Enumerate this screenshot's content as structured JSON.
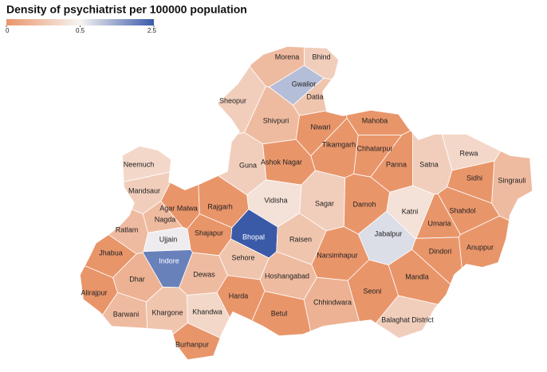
{
  "title": "Density of psychiatrist per 100000 population",
  "colorscale": [
    {
      "value": 0,
      "color": "#e9956a"
    },
    {
      "value": 0.5,
      "color": "#f7f4f2"
    },
    {
      "value": 2.5,
      "color": "#3a5aa8"
    }
  ],
  "legend_ticks": [
    0,
    0.5,
    2.5
  ],
  "districts": [
    {
      "name": "Morena",
      "value": 0.2
    },
    {
      "name": "Bhind",
      "value": 0.3
    },
    {
      "name": "Gwalior",
      "value": 1.2
    },
    {
      "name": "Datia",
      "value": 0.25
    },
    {
      "name": "Sheopur",
      "value": 0.3
    },
    {
      "name": "Shivpuri",
      "value": 0.2
    },
    {
      "name": "Niwari",
      "value": 0
    },
    {
      "name": "Mahoba",
      "value": 0
    },
    {
      "name": "Tikamgarh",
      "value": 0
    },
    {
      "name": "Chhatarpur",
      "value": 0
    },
    {
      "name": "Rewa",
      "value": 0.35
    },
    {
      "name": "Neemuch",
      "value": 0.35
    },
    {
      "name": "Guna",
      "value": 0.3
    },
    {
      "name": "Ashok Nagar",
      "value": 0
    },
    {
      "name": "Satna",
      "value": 0.3
    },
    {
      "name": "Panna",
      "value": 0
    },
    {
      "name": "Sidhi",
      "value": 0
    },
    {
      "name": "Singrauli",
      "value": 0.2
    },
    {
      "name": "Mandsaur",
      "value": 0.3
    },
    {
      "name": "Vidisha",
      "value": 0.4
    },
    {
      "name": "Sagar",
      "value": 0.3
    },
    {
      "name": "Damoh",
      "value": 0
    },
    {
      "name": "Agar Malwa",
      "value": 0
    },
    {
      "name": "Rajgarh",
      "value": 0
    },
    {
      "name": "Katni",
      "value": 0.4
    },
    {
      "name": "Shahdol",
      "value": 0
    },
    {
      "name": "Nagda",
      "value": 0.2
    },
    {
      "name": "Umaria",
      "value": 0
    },
    {
      "name": "Shajapur",
      "value": 0
    },
    {
      "name": "Ratlam",
      "value": 0.2
    },
    {
      "name": "Ujjain",
      "value": 0.6
    },
    {
      "name": "Bhopal",
      "value": 2.5
    },
    {
      "name": "Raisen",
      "value": 0.25
    },
    {
      "name": "Jabalpur",
      "value": 0.8
    },
    {
      "name": "Anuppur",
      "value": 0
    },
    {
      "name": "Dindori",
      "value": 0
    },
    {
      "name": "Jhabua",
      "value": 0
    },
    {
      "name": "Narsimhapur",
      "value": 0
    },
    {
      "name": "Sehore",
      "value": 0.25
    },
    {
      "name": "Indore",
      "value": 2
    },
    {
      "name": "Dewas",
      "value": 0.2
    },
    {
      "name": "Hoshangabad",
      "value": 0.2
    },
    {
      "name": "Mandla",
      "value": 0
    },
    {
      "name": "Dhar",
      "value": 0.15
    },
    {
      "name": "Alirajpur",
      "value": 0
    },
    {
      "name": "Harda",
      "value": 0
    },
    {
      "name": "Chhindwara",
      "value": 0.15
    },
    {
      "name": "Seoni",
      "value": 0
    },
    {
      "name": "Barwani",
      "value": 0.2
    },
    {
      "name": "Khargone",
      "value": 0.25
    },
    {
      "name": "Khandwa",
      "value": 0.35
    },
    {
      "name": "Betul",
      "value": 0
    },
    {
      "name": "Balaghat District",
      "value": 0.3
    },
    {
      "name": "Burhanpur",
      "value": 0
    }
  ]
}
